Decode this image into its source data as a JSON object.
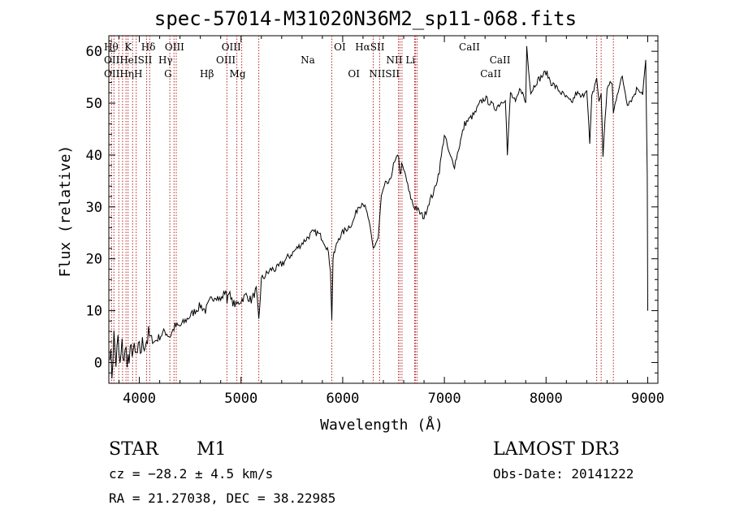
{
  "chart_data": {
    "type": "line",
    "title": "spec-57014-M31020N36M2_sp11-068.fits",
    "xlabel": "Wavelength (Å)",
    "ylabel": "Flux (relative)",
    "xlim": [
      3700,
      9100
    ],
    "ylim": [
      -4,
      63
    ],
    "xticks": [
      4000,
      5000,
      6000,
      7000,
      8000,
      9000
    ],
    "yticks": [
      0,
      10,
      20,
      30,
      40,
      50,
      60
    ],
    "series": [
      {
        "name": "flux",
        "color": "#000000",
        "x": [
          3710,
          3730,
          3750,
          3770,
          3790,
          3810,
          3830,
          3850,
          3870,
          3900,
          3930,
          3960,
          4000,
          4050,
          4100,
          4150,
          4200,
          4250,
          4300,
          4350,
          4400,
          4450,
          4500,
          4550,
          4600,
          4650,
          4700,
          4750,
          4800,
          4850,
          4862,
          4880,
          4900,
          4950,
          5000,
          5050,
          5100,
          5150,
          5175,
          5200,
          5250,
          5300,
          5350,
          5400,
          5450,
          5500,
          5550,
          5600,
          5650,
          5700,
          5750,
          5800,
          5850,
          5880,
          5893,
          5905,
          5930,
          5960,
          6000,
          6050,
          6100,
          6150,
          6200,
          6250,
          6300,
          6350,
          6380,
          6400,
          6430,
          6450,
          6500,
          6550,
          6563,
          6580,
          6620,
          6650,
          6700,
          6720,
          6750,
          6800,
          6850,
          6900,
          6950,
          7000,
          7050,
          7100,
          7150,
          7200,
          7250,
          7300,
          7350,
          7400,
          7450,
          7500,
          7550,
          7600,
          7620,
          7650,
          7700,
          7750,
          7800,
          7810,
          7850,
          7900,
          7950,
          8000,
          8050,
          8100,
          8150,
          8200,
          8250,
          8300,
          8350,
          8400,
          8430,
          8450,
          8498,
          8520,
          8542,
          8560,
          8600,
          8650,
          8662,
          8700,
          8750,
          8800,
          8850,
          8900,
          8950,
          8980,
          8995,
          9000
        ],
        "y": [
          3,
          -2,
          5,
          0,
          4,
          -1,
          3,
          1,
          2,
          0,
          3,
          1,
          2,
          4,
          5,
          4,
          5,
          6,
          5,
          7,
          7,
          8,
          9,
          10,
          11,
          10,
          12,
          13,
          12,
          14,
          12,
          14,
          12,
          11,
          12,
          13,
          12,
          14,
          8,
          16,
          17,
          18,
          18,
          19,
          20,
          21,
          22,
          23,
          24,
          25,
          25,
          24,
          22,
          18,
          8,
          20,
          22,
          24,
          25,
          26,
          27,
          30,
          31,
          28,
          22,
          24,
          32,
          33,
          35,
          34,
          38,
          40,
          36,
          38,
          36,
          33,
          30,
          30,
          29,
          28,
          31,
          33,
          37,
          44,
          40,
          38,
          42,
          46,
          47,
          48,
          50,
          51,
          50,
          49,
          50,
          51,
          40,
          52,
          50,
          53,
          50,
          61,
          52,
          54,
          55,
          56,
          54,
          53,
          52,
          51,
          50,
          52,
          51,
          53,
          42,
          51,
          55,
          50,
          52,
          40,
          53,
          54,
          48,
          52,
          55,
          50,
          51,
          53,
          52,
          58,
          36,
          10
        ]
      }
    ],
    "line_markers": [
      {
        "wave": 3727,
        "label": "OII",
        "row": 2
      },
      {
        "wave": 3750,
        "label": "Hθ",
        "row": 1
      },
      {
        "wave": 3798,
        "label": "Hθ",
        "row": 1
      },
      {
        "wave": 3835,
        "label": "Hη",
        "row": 3
      },
      {
        "wave": 3869,
        "label": "NeIII",
        "row": 2
      },
      {
        "wave": 3889,
        "label": "Hζ",
        "row": 3
      },
      {
        "wave": 3934,
        "label": "K",
        "row": 1
      },
      {
        "wave": 3969,
        "label": "H",
        "row": 3
      },
      {
        "wave": 4072,
        "label": "SII",
        "row": 2
      },
      {
        "wave": 4102,
        "label": "Hδ",
        "row": 1
      },
      {
        "wave": 4300,
        "label": "G",
        "row": 3
      },
      {
        "wave": 4341,
        "label": "Hγ",
        "row": 2
      },
      {
        "wave": 4363,
        "label": "OIII",
        "row": 1
      },
      {
        "wave": 4861,
        "label": "Hβ",
        "row": 3
      },
      {
        "wave": 4959,
        "label": "OIII",
        "row": 2
      },
      {
        "wave": 5007,
        "label": "OIII",
        "row": 1
      },
      {
        "wave": 5175,
        "label": "Mg",
        "row": 3
      },
      {
        "wave": 5893,
        "label": "Na",
        "row": 2
      },
      {
        "wave": 6300,
        "label": "OI",
        "row": 1
      },
      {
        "wave": 6363,
        "label": "OI",
        "row": 3
      },
      {
        "wave": 6548,
        "label": "NII",
        "row": 2
      },
      {
        "wave": 6563,
        "label": "Hα",
        "row": 1
      },
      {
        "wave": 6583,
        "label": "NII",
        "row": 3
      },
      {
        "wave": 6707,
        "label": "Li",
        "row": 2
      },
      {
        "wave": 6716,
        "label": "SII",
        "row": 1
      },
      {
        "wave": 6731,
        "label": "SII",
        "row": 3
      },
      {
        "wave": 8498,
        "label": "CaII",
        "row": 2
      },
      {
        "wave": 8542,
        "label": "CaII",
        "row": 1
      },
      {
        "wave": 8662,
        "label": "CaII",
        "row": 3
      }
    ],
    "label_texts": {
      "row1": "Hθ  K   Hδ   OIII            OIII                              OI   HαSII                        CaII",
      "row2": "OIIHeISII  Hγ              OIII                     Na                       NII Li                        CaII",
      "row3": "OIIHηH       G         Hβ     Mg                                 OI   NIISII                          CaII"
    },
    "grid": false,
    "legend": "none"
  },
  "info": {
    "object_class": "STAR",
    "subclass": "M1",
    "survey": "LAMOST DR3",
    "cz": "cz = −28.2 ± 4.5 km/s",
    "obs_date": "Obs-Date: 20141222",
    "coords": "RA =  21.27038, DEC =  38.22985"
  },
  "colors": {
    "marker_line": "#b22222",
    "spectrum": "#000000"
  }
}
